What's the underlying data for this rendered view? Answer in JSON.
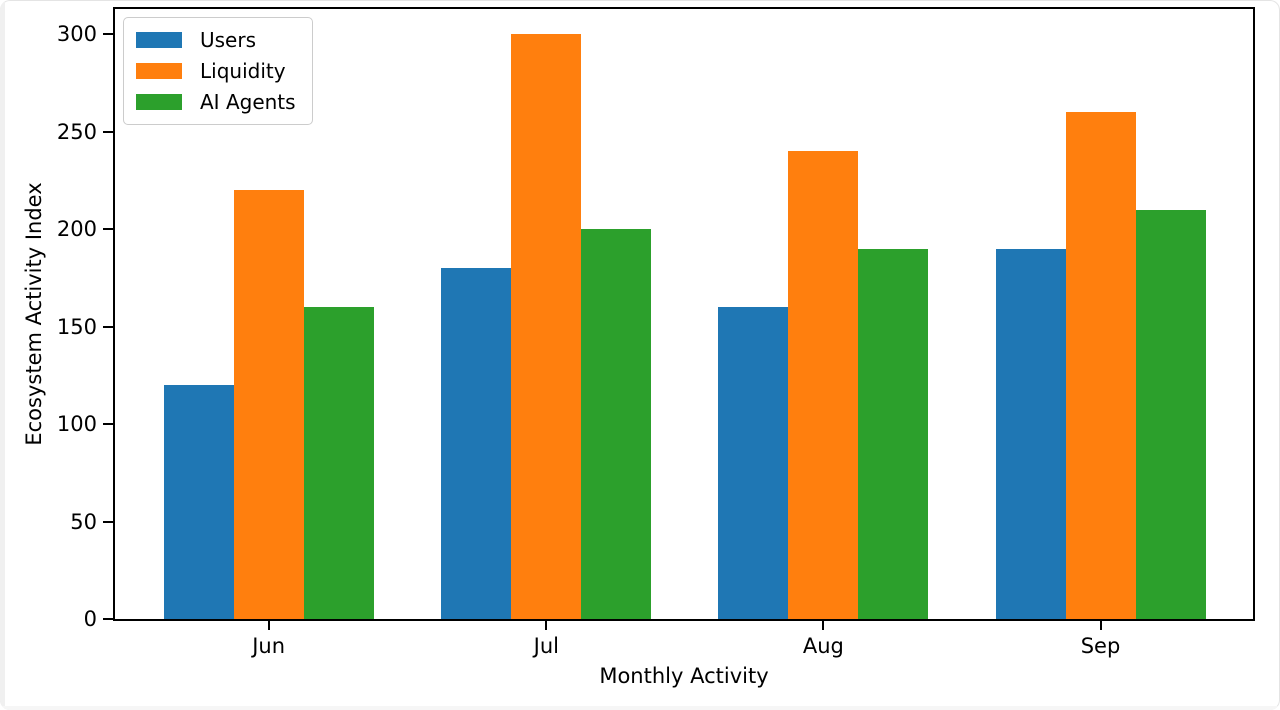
{
  "chart_data": {
    "type": "bar",
    "categories": [
      "Jun",
      "Jul",
      "Aug",
      "Sep"
    ],
    "series": [
      {
        "name": "Users",
        "color": "#1f77b4",
        "values": [
          120,
          180,
          160,
          190
        ]
      },
      {
        "name": "Liquidity",
        "color": "#ff7f0e",
        "values": [
          220,
          300,
          240,
          260
        ]
      },
      {
        "name": "AI Agents",
        "color": "#2ca02c",
        "values": [
          160,
          200,
          190,
          210
        ]
      }
    ],
    "xlabel": "Monthly Activity",
    "ylabel": "Ecosystem Activity Index",
    "yticks": [
      0,
      50,
      100,
      150,
      200,
      250,
      300
    ],
    "ylim": [
      0,
      313
    ],
    "grid": false,
    "legend_position": "upper left"
  },
  "colors": {
    "spine": "#000000",
    "text": "#000000",
    "legend_border": "#cccccc",
    "background": "#ffffff"
  }
}
